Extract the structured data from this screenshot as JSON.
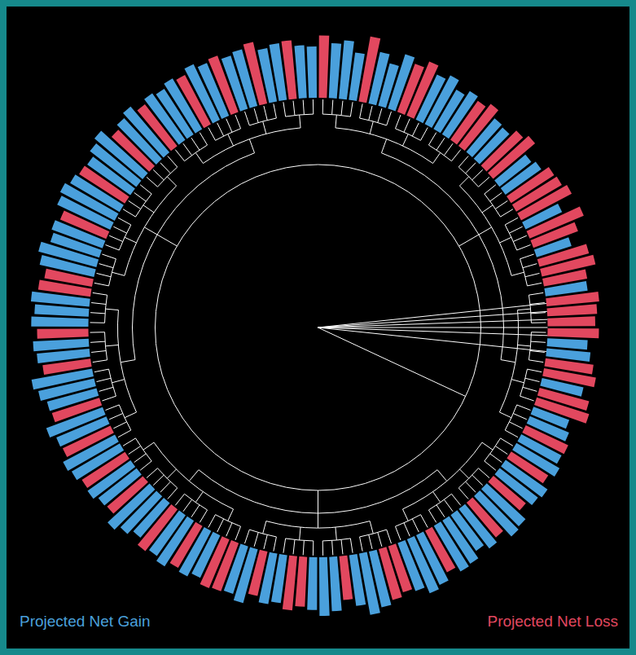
{
  "chart_data": {
    "type": "radial_bar",
    "legend": "bottom",
    "tick_labels": false,
    "ylim": [
      0,
      100
    ],
    "series": [
      {
        "name": "Projected Net Gain",
        "color": "#4aa0dc",
        "values": [
          70,
          null,
          75,
          80,
          65,
          null,
          72,
          60,
          78,
          null,
          null,
          68,
          75,
          62,
          70,
          null,
          null,
          60,
          58,
          null,
          null,
          55,
          60,
          null,
          null,
          null,
          55,
          null,
          null,
          50,
          null,
          null,
          null,
          58,
          null,
          null,
          null,
          null,
          55,
          60,
          null,
          null,
          58,
          null,
          null,
          52,
          58,
          null,
          62,
          68,
          null,
          70,
          66,
          null,
          72,
          75,
          null,
          68,
          60,
          70,
          72,
          null,
          75,
          80,
          70,
          null,
          null,
          78,
          85,
          70,
          null,
          74,
          80,
          72,
          null,
          null,
          66,
          70,
          null,
          76,
          68,
          null,
          null,
          64,
          70,
          null,
          74,
          68,
          null,
          62,
          70,
          78,
          null,
          66,
          72,
          null,
          76,
          80,
          null,
          74,
          82,
          null,
          70,
          78,
          84,
          null,
          72,
          76,
          null,
          78,
          74,
          80,
          null,
          null,
          76,
          82,
          70,
          74,
          null,
          80,
          84,
          78,
          null,
          72,
          80,
          86,
          null,
          76,
          82,
          null,
          78,
          74,
          80,
          null,
          84,
          78,
          null,
          76,
          80,
          null,
          74,
          78,
          null,
          72
        ]
      },
      {
        "name": "Projected Net Loss",
        "color": "#e2485f",
        "values": [
          null,
          85,
          null,
          null,
          null,
          90,
          null,
          null,
          null,
          70,
          80,
          null,
          null,
          null,
          null,
          65,
          72,
          null,
          null,
          68,
          75,
          null,
          null,
          70,
          72,
          78,
          null,
          80,
          65,
          null,
          70,
          75,
          60,
          null,
          72,
          68,
          65,
          70,
          null,
          null,
          66,
          72,
          null,
          70,
          75,
          null,
          null,
          64,
          null,
          null,
          60,
          null,
          null,
          58,
          null,
          null,
          62,
          null,
          null,
          null,
          null,
          64,
          null,
          null,
          null,
          66,
          72,
          null,
          null,
          null,
          60,
          null,
          null,
          null,
          68,
          74,
          null,
          null,
          62,
          null,
          null,
          70,
          72,
          null,
          null,
          66,
          null,
          null,
          72,
          null,
          null,
          null,
          64,
          null,
          null,
          70,
          null,
          null,
          72,
          null,
          null,
          68,
          null,
          null,
          null,
          66,
          null,
          null,
          70,
          null,
          null,
          null,
          72,
          66,
          null,
          null,
          null,
          null,
          68,
          null,
          null,
          null,
          74,
          null,
          null,
          null,
          70,
          null,
          null,
          72,
          null,
          null,
          null,
          76,
          null,
          null,
          82,
          null,
          null,
          86,
          null,
          null,
          80,
          null
        ]
      }
    ]
  }
}
